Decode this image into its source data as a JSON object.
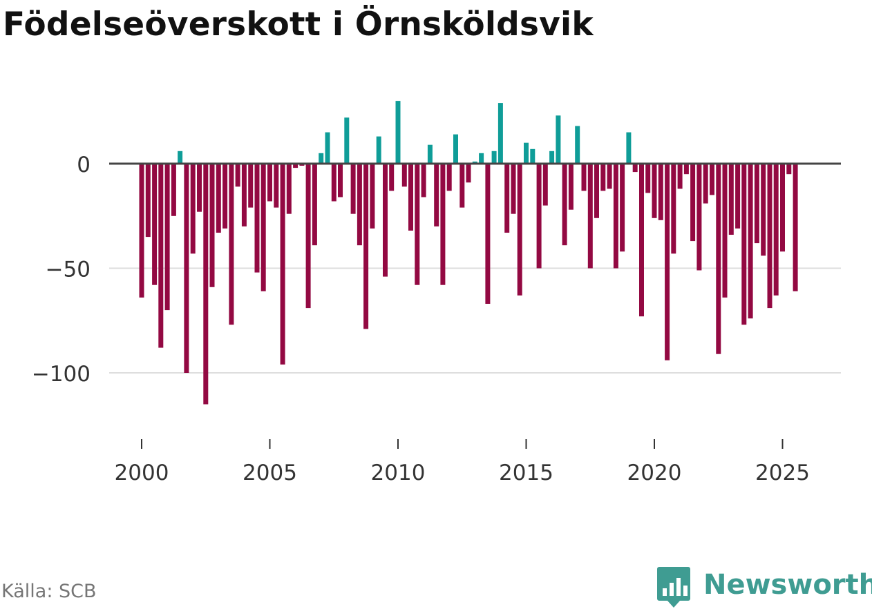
{
  "title": "Födelseöverskott i Örnsköldsvik",
  "source": "Källa: SCB",
  "brand": "Newsworthy",
  "colors": {
    "positive": "#0f9d98",
    "negative": "#930942",
    "zero_line": "#444444",
    "grid": "#dddddd",
    "axis_text": "#333333",
    "brand": "#3f9c92"
  },
  "chart_data": {
    "type": "bar",
    "title": "Födelseöverskott i Örnsköldsvik",
    "xlabel": "",
    "ylabel": "",
    "period": "quarterly",
    "x_start": 2000.0,
    "x_step": 0.25,
    "xlim": [
      1999.5,
      2027.2
    ],
    "ylim": [
      -125,
      32
    ],
    "yticks": [
      0,
      -50,
      -100
    ],
    "ytick_labels": [
      "0",
      "−50",
      "−100"
    ],
    "xticks": [
      2000,
      2005,
      2010,
      2015,
      2020,
      2025
    ],
    "xtick_labels": [
      "2000",
      "2005",
      "2010",
      "2015",
      "2020",
      "2025"
    ],
    "grid": true,
    "values": [
      -64,
      -35,
      -58,
      -88,
      -70,
      -25,
      6,
      -100,
      -43,
      -23,
      -115,
      -59,
      -33,
      -31,
      -77,
      -11,
      -30,
      -21,
      -52,
      -61,
      -18,
      -21,
      -96,
      -24,
      -2,
      -1,
      -69,
      -39,
      5,
      15,
      -18,
      -16,
      22,
      -24,
      -39,
      -79,
      -31,
      13,
      -54,
      -13,
      30,
      -11,
      -32,
      -58,
      -16,
      9,
      -30,
      -58,
      -13,
      14,
      -21,
      -9,
      1,
      5,
      -67,
      6,
      29,
      -33,
      -24,
      -63,
      10,
      7,
      -50,
      -20,
      6,
      23,
      -39,
      -22,
      18,
      -13,
      -50,
      -26,
      -13,
      -12,
      -50,
      -42,
      15,
      -4,
      -73,
      -14,
      -26,
      -27,
      -94,
      -43,
      -12,
      -5,
      -37,
      -51,
      -19,
      -15,
      -91,
      -64,
      -34,
      -31,
      -77,
      -74,
      -38,
      -44,
      -69,
      -63,
      -42,
      -5,
      -61
    ]
  }
}
